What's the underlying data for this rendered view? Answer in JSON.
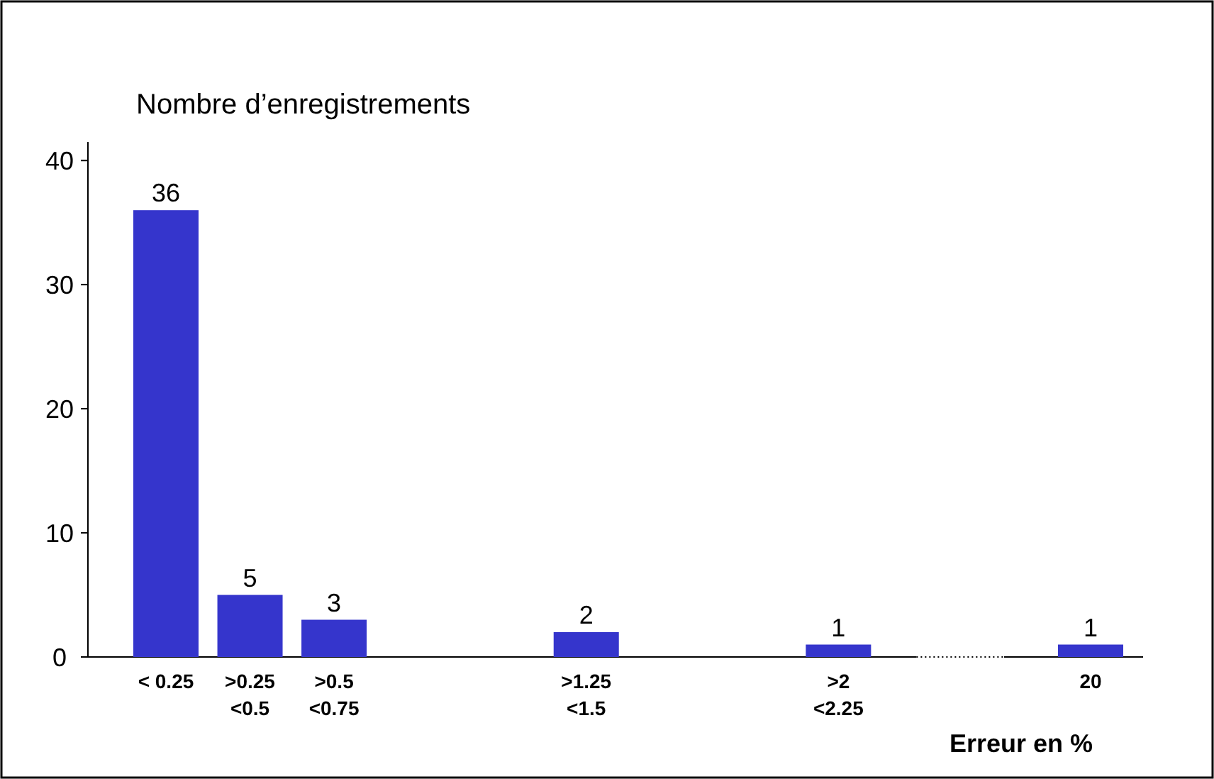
{
  "chart_data": {
    "type": "bar",
    "ylabel": "Nombre d’enregistrements",
    "xlabel": "Erreur en %",
    "categories": [
      "< 0.25",
      ">0.25\n<0.5",
      ">0.5\n<0.75",
      null,
      null,
      ">1.25\n<1.5",
      null,
      null,
      ">2\n<2.25",
      null,
      null,
      "20"
    ],
    "values": [
      36,
      5,
      3,
      null,
      null,
      2,
      null,
      null,
      1,
      null,
      null,
      1
    ],
    "color": "#3535cc",
    "ylim": [
      0,
      41.5
    ],
    "yticks": [
      0,
      10,
      20,
      30,
      40
    ],
    "data_labels": true
  }
}
